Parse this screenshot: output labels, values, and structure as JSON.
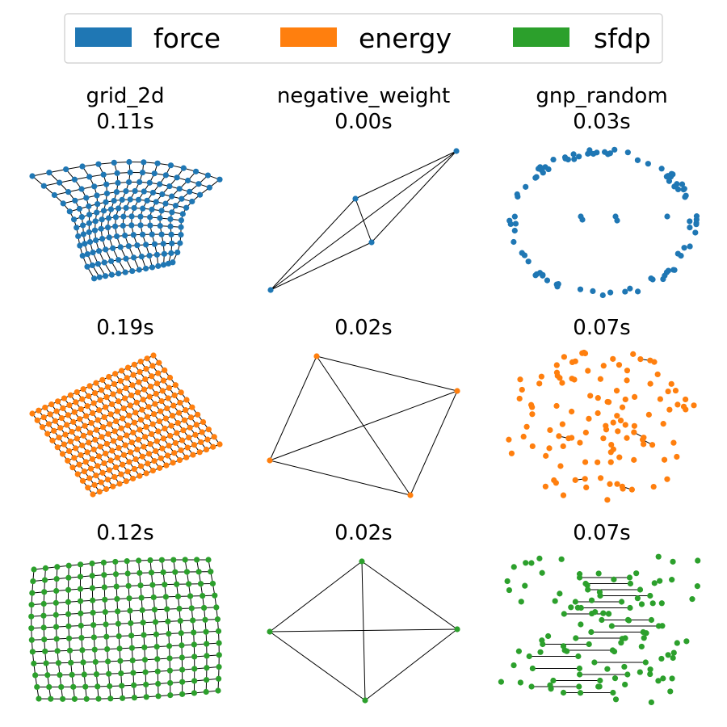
{
  "legend": {
    "placement": "top-center",
    "items": [
      {
        "label": "force",
        "color": "#1f77b4"
      },
      {
        "label": "energy",
        "color": "#ff7f0e"
      },
      {
        "label": "sfdp",
        "color": "#2ca02c"
      }
    ]
  },
  "columns": [
    "grid_2d",
    "negative_weight",
    "gnp_random"
  ],
  "timings": [
    [
      "0.11s",
      "0.00s",
      "0.03s"
    ],
    [
      "0.19s",
      "0.02s",
      "0.07s"
    ],
    [
      "0.12s",
      "0.02s",
      "0.07s"
    ]
  ],
  "edge_color": "#000000"
}
